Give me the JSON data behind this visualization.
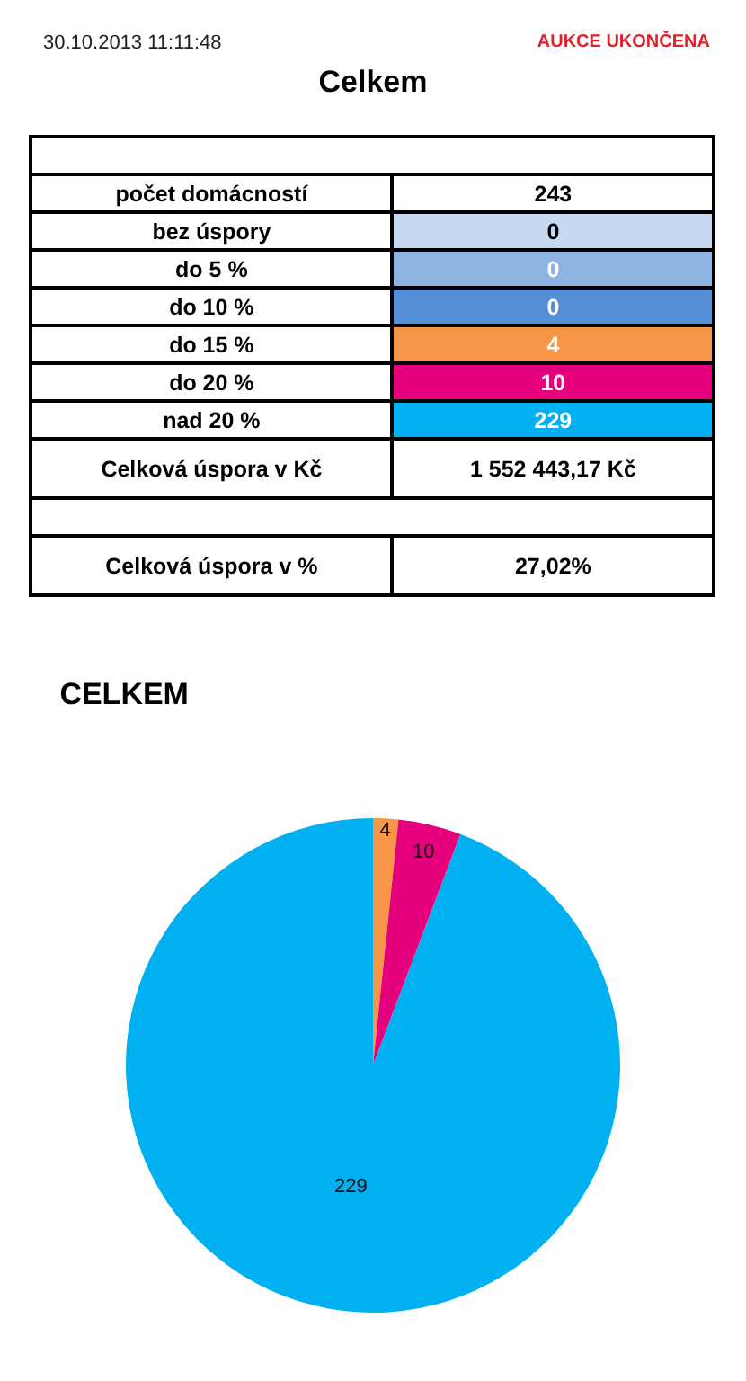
{
  "chart_data": [
    {
      "type": "other",
      "title": "Celkem",
      "annotations": [
        "30.10.2013 11:11:48",
        "AUKCE UKONČENA"
      ],
      "categories": [
        null,
        "počet domácností",
        "bez úspory",
        "do 5 %",
        "do 10 %",
        "do 15 %",
        "do 20 %",
        "nad 20 %",
        "Celková úspora v Kč",
        null,
        "Celková úspora v %"
      ],
      "value_labels": [
        null,
        "243",
        "0",
        "0",
        "0",
        "4",
        "10",
        "229",
        "1 552 443,17 Kč",
        null,
        "27,02%"
      ],
      "colors": [
        null,
        null,
        "#c6d9f1",
        "#8db3e2",
        "#558ed5",
        "#f79646",
        "#e6007e",
        "#00b0f0",
        null,
        null,
        null
      ]
    },
    {
      "type": "pie",
      "title": "CELKEM",
      "categories": [
        null,
        null,
        null
      ],
      "values": [
        4,
        10,
        229
      ],
      "colors": [
        "#f79646",
        "#e6007e",
        "#00b0f0"
      ],
      "data_labels": true
    }
  ]
}
